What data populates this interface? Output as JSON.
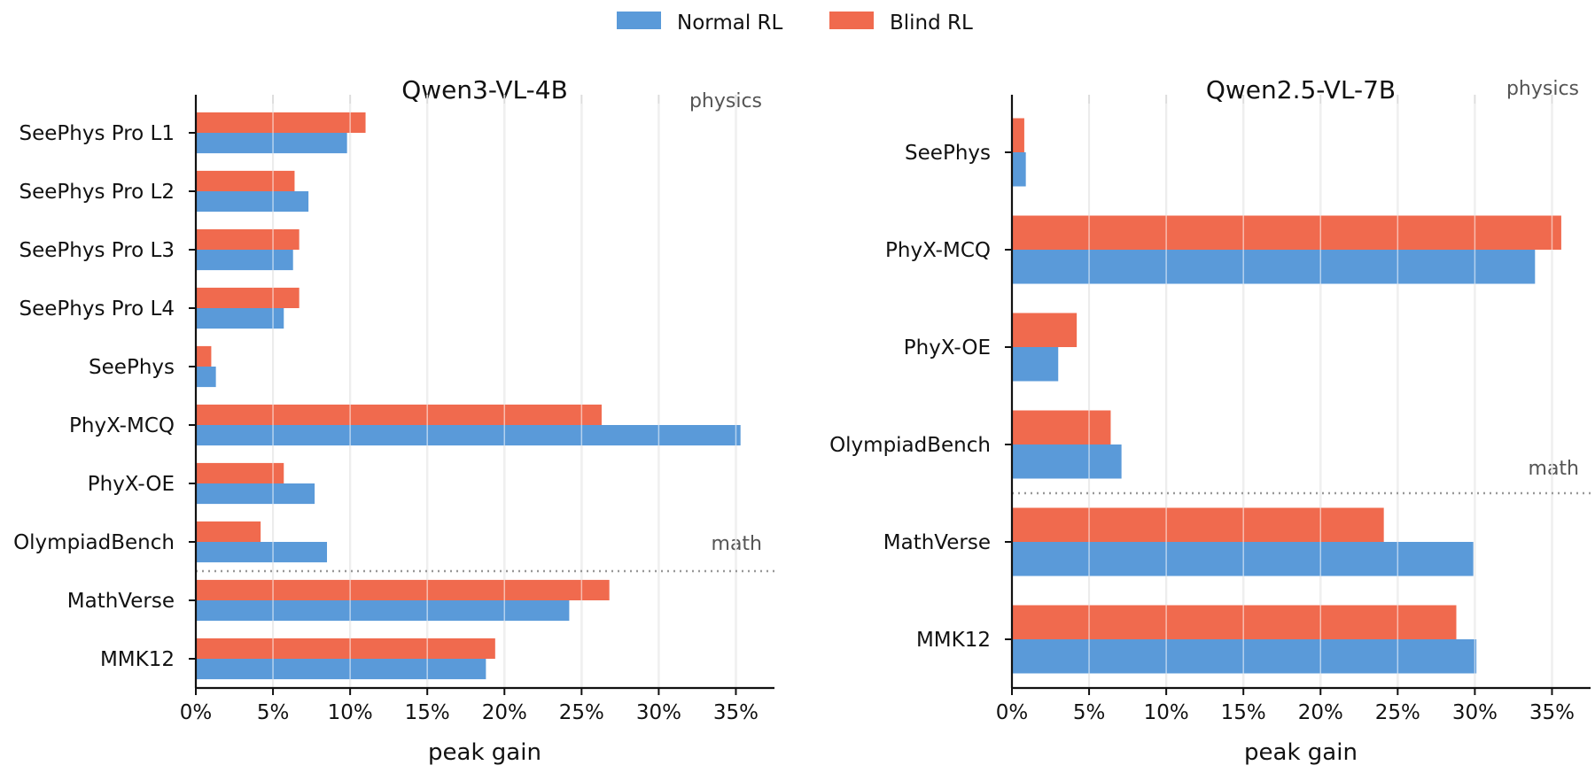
{
  "legend": {
    "position": "top-center",
    "entries": [
      {
        "name": "Normal RL",
        "color": "#5a9ad9"
      },
      {
        "name": "Blind RL",
        "color": "#f06a4e"
      }
    ]
  },
  "chart_data": [
    {
      "type": "bar",
      "orientation": "horizontal",
      "title": "Qwen3-VL-4B",
      "xlabel": "peak gain",
      "ylabel": "",
      "xlim": [
        0,
        37.5
      ],
      "xticks": [
        0,
        5,
        10,
        15,
        20,
        25,
        30,
        35
      ],
      "xtick_labels": [
        "0%",
        "5%",
        "10%",
        "15%",
        "20%",
        "25%",
        "30%",
        "35%"
      ],
      "grid": "vertical",
      "categories": [
        "SeePhys Pro L1",
        "SeePhys Pro L2",
        "SeePhys Pro L3",
        "SeePhys Pro L4",
        "SeePhys",
        "PhyX-MCQ",
        "PhyX-OE",
        "OlympiadBench",
        "MathVerse",
        "MMK12"
      ],
      "series": [
        {
          "name": "Normal RL",
          "color": "#5a9ad9",
          "values": [
            9.8,
            7.3,
            6.3,
            5.7,
            1.3,
            35.3,
            7.7,
            8.5,
            24.2,
            18.8
          ]
        },
        {
          "name": "Blind RL",
          "color": "#f06a4e",
          "values": [
            11.0,
            6.4,
            6.7,
            6.7,
            1.0,
            26.3,
            5.7,
            4.2,
            26.8,
            19.4
          ]
        }
      ],
      "groups": [
        {
          "label": "physics",
          "categories": [
            "SeePhys Pro L1",
            "SeePhys Pro L2",
            "SeePhys Pro L3",
            "SeePhys Pro L4",
            "SeePhys",
            "PhyX-MCQ",
            "PhyX-OE",
            "OlympiadBench"
          ]
        },
        {
          "label": "math",
          "categories": [
            "MathVerse",
            "MMK12"
          ]
        }
      ]
    },
    {
      "type": "bar",
      "orientation": "horizontal",
      "title": "Qwen2.5-VL-7B",
      "xlabel": "peak gain",
      "ylabel": "",
      "xlim": [
        0,
        37.5
      ],
      "xticks": [
        0,
        5,
        10,
        15,
        20,
        25,
        30,
        35
      ],
      "xtick_labels": [
        "0%",
        "5%",
        "10%",
        "15%",
        "20%",
        "25%",
        "30%",
        "35%"
      ],
      "grid": "vertical",
      "categories": [
        "SeePhys",
        "PhyX-MCQ",
        "PhyX-OE",
        "OlympiadBench",
        "MathVerse",
        "MMK12"
      ],
      "series": [
        {
          "name": "Normal RL",
          "color": "#5a9ad9",
          "values": [
            0.9,
            33.9,
            3.0,
            7.1,
            29.9,
            30.1
          ]
        },
        {
          "name": "Blind RL",
          "color": "#f06a4e",
          "values": [
            0.8,
            35.6,
            4.2,
            6.4,
            24.1,
            28.8
          ]
        }
      ],
      "groups": [
        {
          "label": "physics",
          "categories": [
            "SeePhys",
            "PhyX-MCQ",
            "PhyX-OE",
            "OlympiadBench"
          ]
        },
        {
          "label": "math",
          "categories": [
            "MathVerse",
            "MMK12"
          ]
        }
      ]
    }
  ]
}
